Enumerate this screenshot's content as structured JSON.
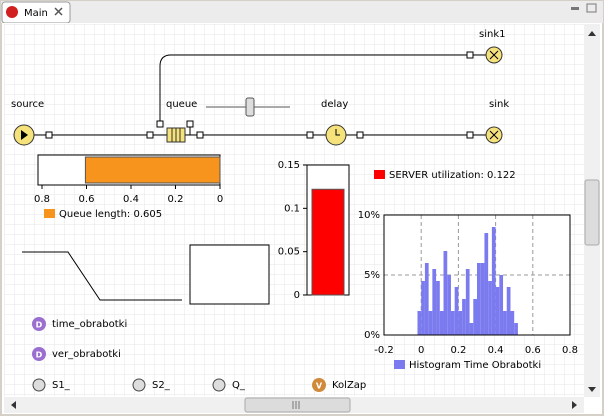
{
  "tab": {
    "title": "Main"
  },
  "blocks": [
    {
      "label": "source"
    },
    {
      "label": "queue"
    },
    {
      "label": "delay"
    },
    {
      "label": "sink"
    },
    {
      "label": "sink1"
    }
  ],
  "variables": [
    {
      "label": "time_obrabotki"
    },
    {
      "label": "ver_obrabotki"
    }
  ],
  "parameters": [
    {
      "label": "S1_"
    },
    {
      "label": "S2_"
    },
    {
      "label": "Q_"
    },
    {
      "label": "KolZap"
    }
  ],
  "chart_data": [
    {
      "type": "bar",
      "orientation": "horizontal",
      "series": [
        {
          "name": "Queue length: 0.605",
          "color": "#f7941d",
          "values": [
            0.605
          ]
        }
      ],
      "xlim": [
        0.8,
        0
      ],
      "xticks": [
        0.8,
        0.6,
        0.4,
        0.2,
        0
      ]
    },
    {
      "type": "bar",
      "orientation": "vertical",
      "series": [
        {
          "name": "SERVER utilization: 0.122",
          "color": "#ff0000",
          "values": [
            0.122
          ]
        }
      ],
      "ylim": [
        0,
        0.15
      ],
      "yticks": [
        0,
        0.05,
        0.1,
        0.15
      ]
    },
    {
      "type": "histogram",
      "bins": [
        -0.02,
        0,
        0.02,
        0.04,
        0.06,
        0.08,
        0.1,
        0.12,
        0.14,
        0.16,
        0.18,
        0.2,
        0.22,
        0.24,
        0.26,
        0.28,
        0.3,
        0.32,
        0.34,
        0.36,
        0.38,
        0.4,
        0.42,
        0.44,
        0.46,
        0.48,
        0.5,
        0.52
      ],
      "series": [
        {
          "name": "Histogram Time Obrabotki",
          "color": "#7b7bef",
          "values": [
            2,
            4.5,
            6,
            2,
            5.5,
            4.5,
            2,
            7,
            5,
            2,
            4,
            2,
            3,
            5.5,
            1,
            3,
            6,
            6,
            8.5,
            4.5,
            9,
            4,
            5,
            2,
            4,
            2,
            1
          ]
        }
      ],
      "xlim": [
        -0.2,
        0.8
      ],
      "xticks": [
        -0.2,
        0,
        0.2,
        0.4,
        0.6,
        0.8
      ],
      "ylim": [
        0,
        10
      ],
      "yticks": [
        {
          "value": 0,
          "label": "0%"
        },
        {
          "value": 5,
          "label": "5%"
        },
        {
          "value": 10,
          "label": "10%"
        }
      ],
      "grid": true
    }
  ]
}
